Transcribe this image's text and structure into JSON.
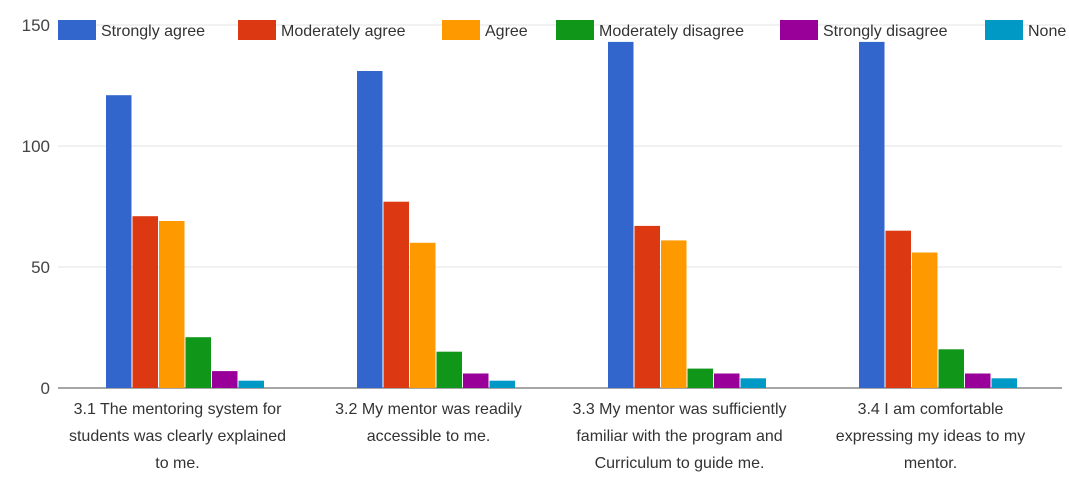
{
  "chart_data": {
    "type": "bar",
    "title": "",
    "xlabel": "",
    "ylabel": "",
    "ylim": [
      0,
      150
    ],
    "yticks": [
      "0",
      "50",
      "100",
      "150"
    ],
    "grid": true,
    "legend_position": "top",
    "categories": [
      "3.1 The mentoring system for students was clearly explained to me.",
      "3.2 My mentor was readily accessible to me.",
      "3.3 My mentor was sufficiently familiar with the program and Curriculum to guide me.",
      "3.4 I am comfortable expressing my ideas to my mentor."
    ],
    "category_lines": [
      [
        "3.1 The mentoring system for",
        "students was clearly explained",
        "to me."
      ],
      [
        "3.2 My mentor was readily",
        "accessible to me."
      ],
      [
        "3.3 My mentor was sufficiently",
        "familiar with the program and",
        "Curriculum to guide me."
      ],
      [
        "3.4 I am comfortable",
        "expressing my ideas to my",
        "mentor."
      ]
    ],
    "series": [
      {
        "name": "Strongly agree",
        "color": "#3366cc",
        "values": [
          121,
          131,
          143,
          143
        ]
      },
      {
        "name": "Moderately agree",
        "color": "#dc3912",
        "values": [
          71,
          77,
          67,
          65
        ]
      },
      {
        "name": "Agree",
        "color": "#ff9900",
        "values": [
          69,
          60,
          61,
          56
        ]
      },
      {
        "name": "Moderately disagree",
        "color": "#109618",
        "values": [
          21,
          15,
          8,
          16
        ]
      },
      {
        "name": "Strongly disagree",
        "color": "#990099",
        "values": [
          7,
          6,
          6,
          6
        ]
      },
      {
        "name": "None",
        "color": "#0099c6",
        "values": [
          3,
          3,
          4,
          4
        ]
      }
    ]
  }
}
